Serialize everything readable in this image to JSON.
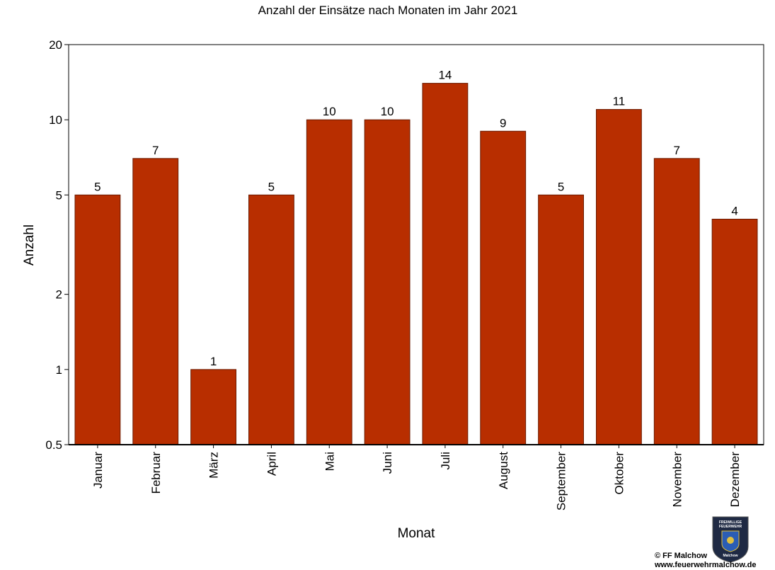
{
  "chart_data": {
    "type": "bar",
    "title": "Anzahl der Einsätze  nach Monaten im Jahr 2021",
    "xlabel": "Monat",
    "ylabel": "Anzahl",
    "yscale": "log",
    "ylim": [
      0.5,
      20
    ],
    "yticks": [
      0.5,
      1,
      2,
      5,
      10,
      20
    ],
    "ytick_labels": [
      "0.5",
      "1",
      "2",
      "5",
      "10",
      "20"
    ],
    "grid": false,
    "legend": "none",
    "bar_color": "#b82e00",
    "categories": [
      "Januar",
      "Februar",
      "März",
      "April",
      "Mai",
      "Juni",
      "Juli",
      "August",
      "September",
      "Oktober",
      "November",
      "Dezember"
    ],
    "values": [
      5,
      7,
      1,
      5,
      10,
      10,
      14,
      9,
      5,
      11,
      7,
      4
    ]
  },
  "credit": {
    "line1": "© FF Malchow",
    "line2": "www.feuerwehrmalchow.de",
    "logo_icon": "fire-brigade-shield-icon",
    "logo_top_text": "FREIWILLIGE",
    "logo_mid_text": "FEUERWEHR",
    "logo_bottom_text": "Malchow"
  }
}
